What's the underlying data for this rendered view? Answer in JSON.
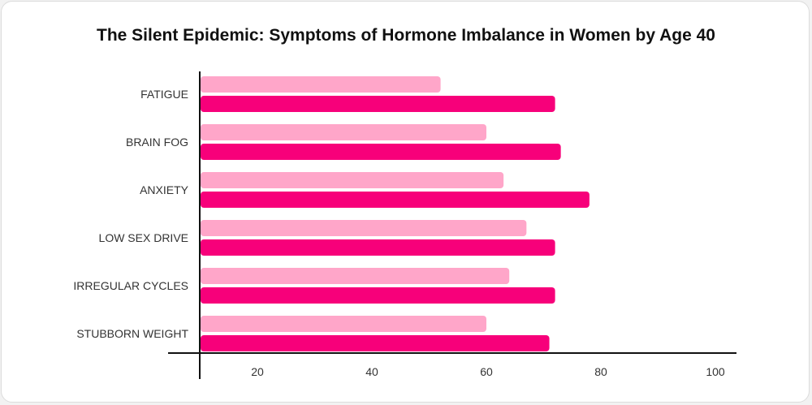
{
  "chart_data": {
    "type": "bar",
    "orientation": "horizontal",
    "title": "The Silent Epidemic: Symptoms of Hormone Imbalance in Women by Age 40",
    "xlabel": "",
    "ylabel": "",
    "categories": [
      "FATIGUE",
      "BRAIN FOG",
      "ANXIETY",
      "LOW SEX DRIVE",
      "IRREGULAR CYCLES",
      "STUBBORN WEIGHT"
    ],
    "series": [
      {
        "color": "#ffa6c9",
        "values": [
          52,
          60,
          63,
          67,
          64,
          60
        ]
      },
      {
        "color": "#f7007a",
        "values": [
          72,
          73,
          78,
          72,
          72,
          71
        ]
      }
    ],
    "xlim": [
      10,
      104
    ],
    "xticks": [
      20,
      40,
      60,
      80,
      100
    ],
    "grid": false,
    "legend": "none"
  }
}
